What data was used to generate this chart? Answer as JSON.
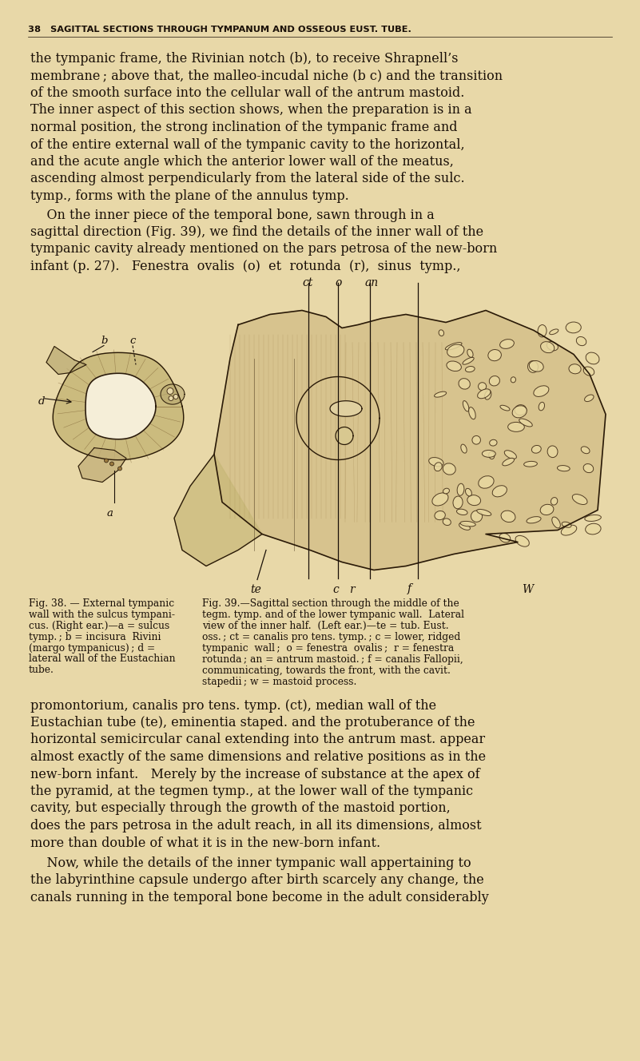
{
  "bg_color": "#e8d8a8",
  "text_color": "#1a1008",
  "header_text": "38   SAGITTAL SECTIONS THROUGH TYMPANUM AND OSSEOUS EUST. TUBE.",
  "para1_lines": [
    "the tympanic frame, the Rivinian notch (b), to receive Shrapnell’s",
    "membrane ; above that, the malleo-incudal niche (b c) and the transition",
    "of the smooth surface into the cellular wall of the antrum mastoid.",
    "The inner aspect of this section shows, when the preparation is in a",
    "normal position, the strong inclination of the tympanic frame and",
    "of the entire external wall of the tympanic cavity to the horizontal,",
    "and the acute angle which the anterior lower wall of the meatus,",
    "ascending almost perpendicularly from the lateral side of the sulc.",
    "tymp., forms with the plane of the annulus tymp."
  ],
  "para2_lines": [
    "    On the inner piece of the temporal bone, sawn through in a",
    "sagittal direction (Fig. 39), we find the details of the inner wall of the",
    "tympanic cavity already mentioned on the pars petrosa of the new-born",
    "infant (p. 27).   Fenestra  ovalis  (o)  et  rotunda  (r),  sinus  tymp.,"
  ],
  "fig38_caption_lines": [
    "Fig. 38. — External tympanic",
    "wall with the sulcus tympani-",
    "cus. (Right ear.)—a = sulcus",
    "tymp. ; b = incisura  Rivini",
    "(margo tympanicus) ; d =",
    "lateral wall of the Eustachian",
    "tube."
  ],
  "fig39_caption_lines": [
    "Fig. 39.—Sagittal section through the middle of the",
    "tegm. tymp. and of the lower tympanic wall.  Lateral",
    "view of the inner half.  (Left ear.)—te = tub. Eust.",
    "oss. ; ct = canalis pro tens. tymp. ; c = lower, ridged",
    "tympanic  wall ;  o = fenestra  ovalis ;  r = fenestra",
    "rotunda ; an = antrum mastoid. ; f = canalis Fallopii,",
    "communicating, towards the front, with the cavit.",
    "stapedii ; w = mastoid process."
  ],
  "para3_lines": [
    "promontorium, canalis pro tens. tymp. (ct), median wall of the",
    "Eustachian tube (te), eminentia staped. and the protuberance of the",
    "horizontal semicircular canal extending into the antrum mast. appear",
    "almost exactly of the same dimensions and relative positions as in the",
    "new-born infant.   Merely by the increase of substance at the apex of",
    "the pyramid, at the tegmen tymp., at the lower wall of the tympanic",
    "cavity, but especially through the growth of the mastoid portion,",
    "does the pars petrosa in the adult reach, in all its dimensions, almost",
    "more than double of what it is in the new-born infant."
  ],
  "para4_lines": [
    "    Now, while the details of the inner tympanic wall appertaining to",
    "the labyrinthine capsule undergo after birth scarcely any change, the",
    "canals running in the temporal bone become in the adult considerably"
  ]
}
